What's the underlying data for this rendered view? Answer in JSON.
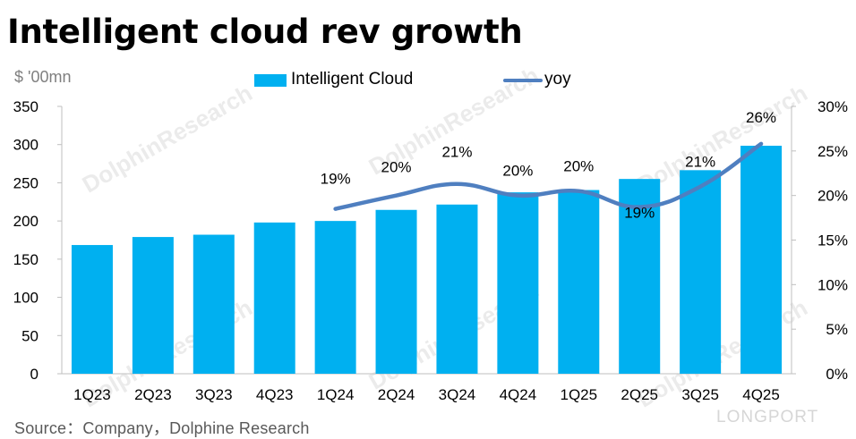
{
  "title": "Intelligent cloud rev growth",
  "unit_label": "$ '00mn",
  "source": "Source：Company，Dolphine Research",
  "brand_watermark": "LONGPORT",
  "bg_watermark": "DolphinResearch",
  "colors": {
    "bar": "#00b0f0",
    "line": "#4f7fc0",
    "axis": "#bfbfbf"
  },
  "chart_data": {
    "type": "bar",
    "categories": [
      "1Q23",
      "2Q23",
      "3Q23",
      "4Q23",
      "1Q24",
      "2Q24",
      "3Q24",
      "4Q24",
      "1Q25",
      "2Q25",
      "3Q25",
      "4Q25"
    ],
    "series": [
      {
        "name": "Intelligent Cloud",
        "type": "bar",
        "axis": "left",
        "values": [
          168.5,
          179,
          182,
          198,
          200,
          214.5,
          221.5,
          237.5,
          240.5,
          255,
          266.5,
          298.5
        ]
      },
      {
        "name": "yoy",
        "type": "line",
        "axis": "right",
        "values": [
          null,
          null,
          null,
          null,
          0.185,
          0.2,
          0.213,
          0.2,
          0.205,
          0.187,
          0.21,
          0.258
        ],
        "labels": [
          "",
          "",
          "",
          "",
          "19%",
          "20%",
          "21%",
          "20%",
          "20%",
          "19%",
          "21%",
          "26%"
        ]
      }
    ],
    "y_left": {
      "min": 0,
      "max": 350,
      "ticks": [
        "0",
        "50",
        "100",
        "150",
        "200",
        "250",
        "300",
        "350"
      ]
    },
    "y_right": {
      "min": 0,
      "max": 0.3,
      "ticks": [
        "0%",
        "5%",
        "10%",
        "15%",
        "20%",
        "25%",
        "30%"
      ]
    },
    "legend_position": "top-center",
    "grid": false
  }
}
